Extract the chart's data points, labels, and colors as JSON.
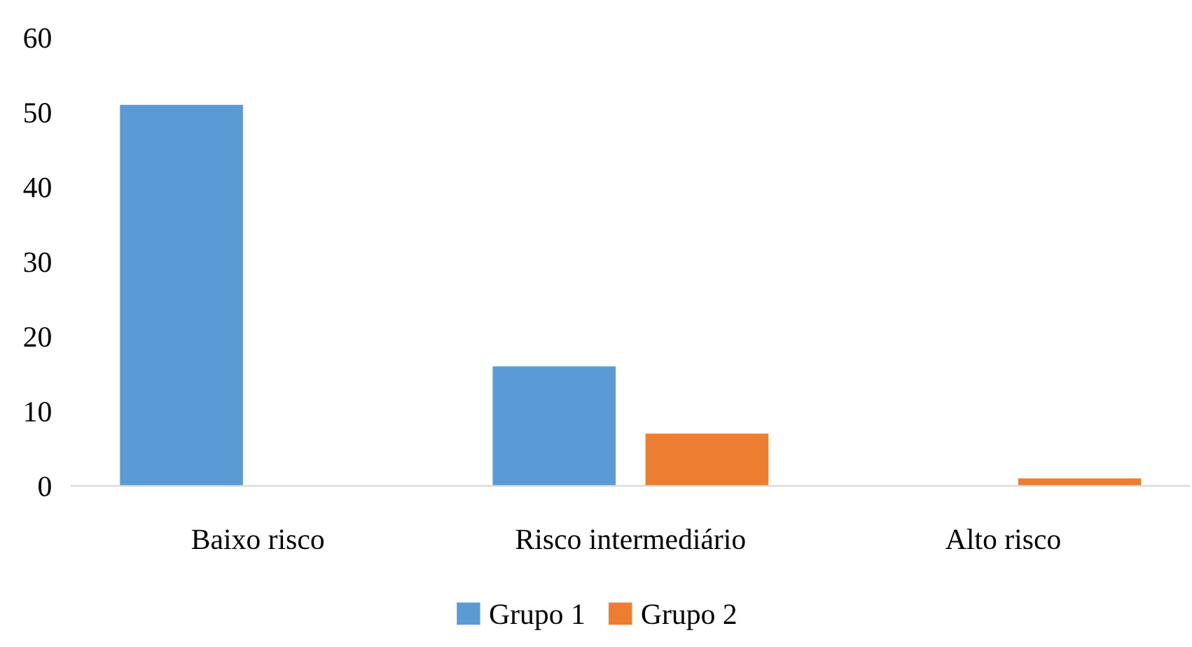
{
  "chart_data": {
    "type": "bar",
    "categories": [
      "Baixo risco",
      "Risco intermediário",
      "Alto risco"
    ],
    "series": [
      {
        "name": "Grupo 1",
        "color": "#5b9bd5",
        "values": [
          51,
          16,
          0
        ]
      },
      {
        "name": "Grupo 2",
        "color": "#ed7d31",
        "values": [
          0,
          7,
          1
        ]
      }
    ],
    "ylim": [
      0,
      60
    ],
    "yticks": [
      0,
      10,
      20,
      30,
      40,
      50,
      60
    ],
    "grid": false,
    "legend": "bottom"
  }
}
